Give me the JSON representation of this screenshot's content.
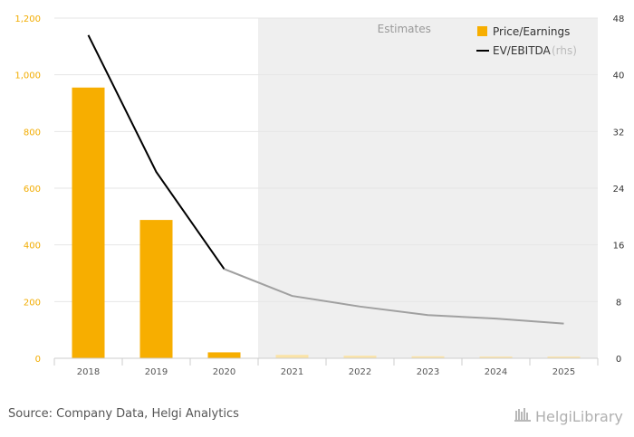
{
  "chart_data": {
    "type": "bar+line",
    "categories": [
      "2018",
      "2019",
      "2020",
      "2021",
      "2022",
      "2023",
      "2024",
      "2025"
    ],
    "estimates_from": "2021",
    "estimates_label": "Estimates",
    "series": [
      {
        "name": "Price/Earnings",
        "type": "bar",
        "axis": "left",
        "values": [
          955,
          488,
          21,
          12,
          9,
          7,
          6,
          6
        ],
        "color": "#f7ae00",
        "estimate_color": "#fbe3a6"
      },
      {
        "name": "EV/EBITDA",
        "name_suffix": "(rhs)",
        "type": "line",
        "axis": "right",
        "values": [
          45.6,
          26.3,
          12.6,
          8.8,
          7.3,
          6.1,
          5.6,
          4.9
        ],
        "color": "#000000",
        "estimate_color": "#a0a0a0"
      }
    ],
    "y_left": {
      "min": 0,
      "max": 1200,
      "ticks": [
        0,
        200,
        400,
        600,
        800,
        1000,
        1200
      ],
      "tick_labels": [
        "0",
        "200",
        "400",
        "600",
        "800",
        "1,000",
        "1,200"
      ]
    },
    "y_right": {
      "min": 0,
      "max": 48,
      "ticks": [
        0,
        8,
        16,
        24,
        32,
        40,
        48
      ],
      "tick_labels": [
        "0",
        "8",
        "16",
        "24",
        "32",
        "40",
        "48"
      ]
    },
    "legend_position": "top-right",
    "grid": "horizontal"
  },
  "footer": {
    "source": "Source: Company Data, Helgi Analytics",
    "logo_text": "HelgiLibrary"
  },
  "colors": {
    "estimate_shade": "#efefef",
    "grid": "#e6e6e6"
  }
}
